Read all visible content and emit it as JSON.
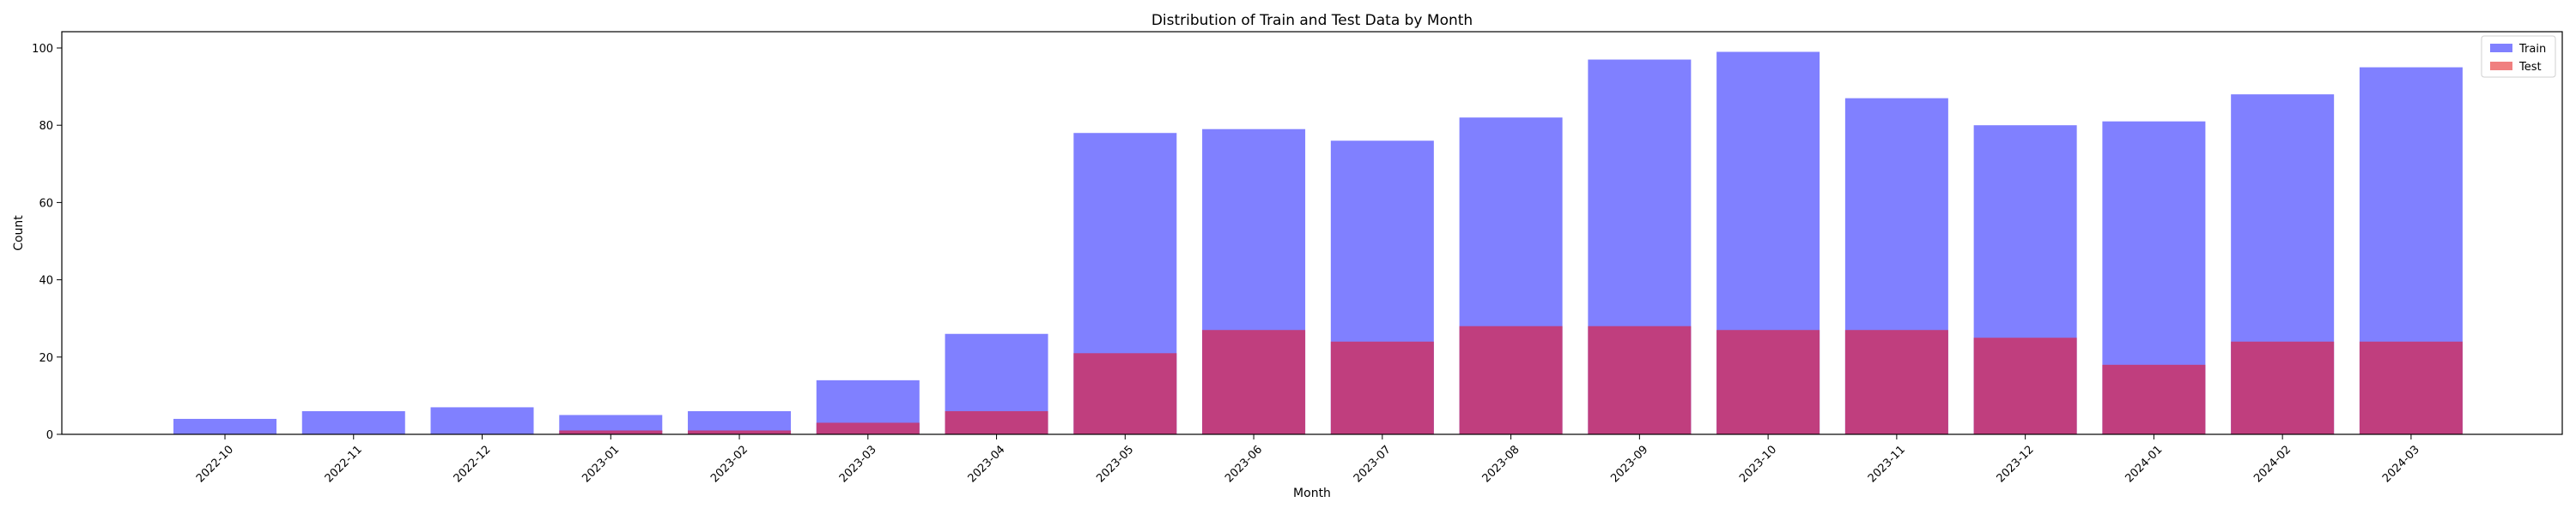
{
  "chart_data": {
    "type": "bar",
    "title": "Distribution of Train and Test Data by Month",
    "xlabel": "Month",
    "ylabel": "Count",
    "ylim": [
      0,
      100
    ],
    "yticks": [
      0,
      20,
      40,
      60,
      80,
      100
    ],
    "categories": [
      "2022-10",
      "2022-11",
      "2022-12",
      "2023-01",
      "2023-02",
      "2023-03",
      "2023-04",
      "2023-05",
      "2023-06",
      "2023-07",
      "2023-08",
      "2023-09",
      "2023-10",
      "2023-11",
      "2023-12",
      "2024-01",
      "2024-02",
      "2024-03"
    ],
    "series": [
      {
        "name": "Train",
        "color": "#8080ff",
        "values": [
          4,
          6,
          7,
          5,
          6,
          14,
          26,
          78,
          79,
          76,
          82,
          97,
          99,
          87,
          80,
          81,
          88,
          95
        ]
      },
      {
        "name": "Test",
        "color": "#c03e7e",
        "legend_color": "#f07f7f",
        "values": [
          0,
          0,
          0,
          1,
          1,
          3,
          6,
          21,
          27,
          24,
          28,
          28,
          27,
          27,
          25,
          18,
          24,
          24
        ]
      }
    ],
    "legend": "top-right",
    "grid": false
  }
}
